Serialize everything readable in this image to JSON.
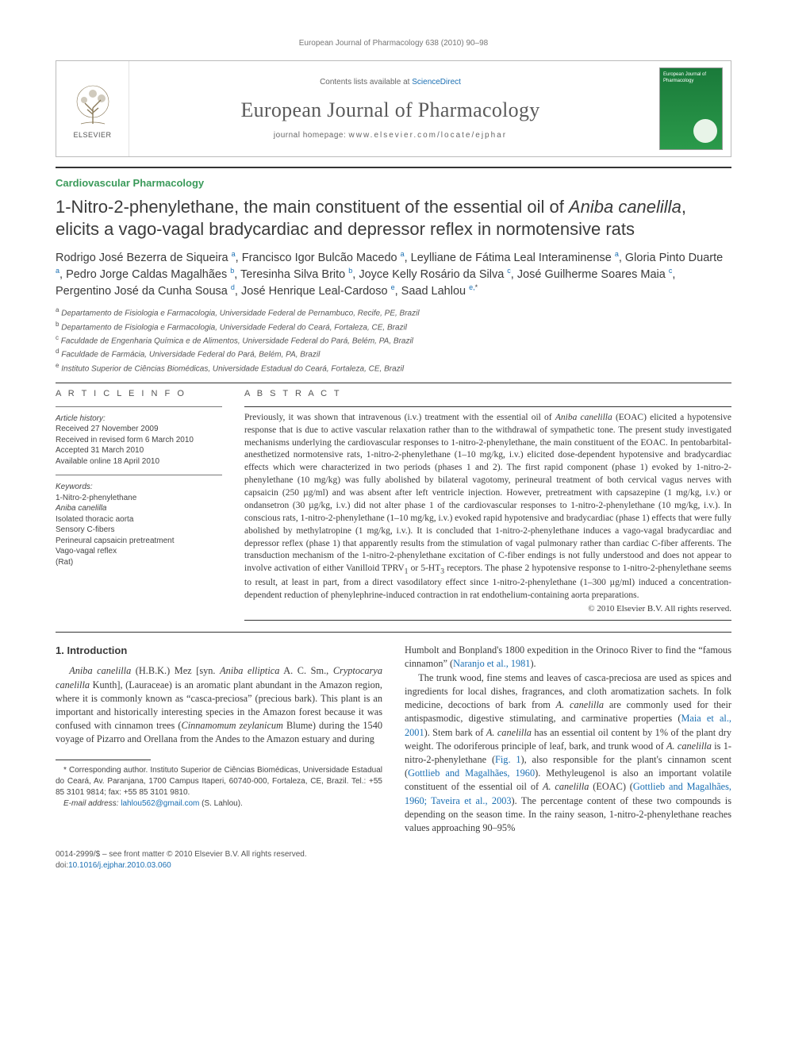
{
  "running_head": "European Journal of Pharmacology 638 (2010) 90–98",
  "masthead": {
    "contents_prefix": "Contents lists available at ",
    "contents_link": "ScienceDirect",
    "journal_name": "European Journal of Pharmacology",
    "homepage_label": "journal homepage: ",
    "homepage_url": "www.elsevier.com/locate/ejphar",
    "publisher_word": "ELSEVIER",
    "cover_text": "European Journal of Pharmacology"
  },
  "section_tag": "Cardiovascular Pharmacology",
  "title_html": "1-Nitro-2-phenylethane, the main constituent of the essential oil of <em>Aniba canelilla</em>, elicits a vago-vagal bradycardiac and depressor reflex in normotensive rats",
  "authors_html": "Rodrigo José Bezerra de Siqueira <sup>a</sup>, Francisco Igor Bulcão Macedo <sup>a</sup>, Leylliane de Fátima Leal Interaminense <sup>a</sup>, Gloria Pinto Duarte <sup>a</sup>, Pedro Jorge Caldas Magalhães <sup>b</sup>, Teresinha Silva Brito <sup>b</sup>, Joyce Kelly Rosário da Silva <sup>c</sup>, José Guilherme Soares Maia <sup>c</sup>, Pergentino José da Cunha Sousa <sup>d</sup>, José Henrique Leal-Cardoso <sup>e</sup>, Saad Lahlou <sup>e,</sup><sup class=\"ast\">*</sup>",
  "affiliations": [
    {
      "key": "a",
      "text": "Departamento de Fisiologia e Farmacologia, Universidade Federal de Pernambuco, Recife, PE, Brazil"
    },
    {
      "key": "b",
      "text": "Departamento de Fisiologia e Farmacologia, Universidade Federal do Ceará, Fortaleza, CE, Brazil"
    },
    {
      "key": "c",
      "text": "Faculdade de Engenharia Química e de Alimentos, Universidade Federal do Pará, Belém, PA, Brazil"
    },
    {
      "key": "d",
      "text": "Faculdade de Farmácia, Universidade Federal do Pará, Belém, PA, Brazil"
    },
    {
      "key": "e",
      "text": "Instituto Superior de Ciências Biomédicas, Universidade Estadual do Ceará, Fortaleza, CE, Brazil"
    }
  ],
  "article_info": {
    "heading": "A R T I C L E   I N F O",
    "history_label": "Article history:",
    "history": [
      "Received 27 November 2009",
      "Received in revised form 6 March 2010",
      "Accepted 31 March 2010",
      "Available online 18 April 2010"
    ],
    "keywords_label": "Keywords:",
    "keywords": [
      "1-Nitro-2-phenylethane",
      "Aniba canelilla",
      "Isolated thoracic aorta",
      "Sensory C-fibers",
      "Perineural capsaicin pretreatment",
      "Vago-vagal reflex",
      "(Rat)"
    ]
  },
  "abstract": {
    "heading": "A B S T R A C T",
    "text_html": "Previously, it was shown that intravenous (i.v.) treatment with the essential oil of <em>Aniba canelilla</em> (EOAC) elicited a hypotensive response that is due to active vascular relaxation rather than to the withdrawal of sympathetic tone. The present study investigated mechanisms underlying the cardiovascular responses to 1-nitro-2-phenylethane, the main constituent of the EOAC. In pentobarbital-anesthetized normotensive rats, 1-nitro-2-phenylethane (1–10 mg/kg, i.v.) elicited dose-dependent hypotensive and bradycardiac effects which were characterized in two periods (phases 1 and 2). The first rapid component (phase 1) evoked by 1-nitro-2-phenylethane (10 mg/kg) was fully abolished by bilateral vagotomy, perineural treatment of both cervical vagus nerves with capsaicin (250 µg/ml) and was absent after left ventricle injection. However, pretreatment with capsazepine (1 mg/kg, i.v.) or ondansetron (30 µg/kg, i.v.) did not alter phase 1 of the cardiovascular responses to 1-nitro-2-phenylethane (10 mg/kg, i.v.). In conscious rats, 1-nitro-2-phenylethane (1–10 mg/kg, i.v.) evoked rapid hypotensive and bradycardiac (phase 1) effects that were fully abolished by methylatropine (1 mg/kg, i.v.). It is concluded that 1-nitro-2-phenylethane induces a vago-vagal bradycardiac and depressor reflex (phase 1) that apparently results from the stimulation of vagal pulmonary rather than cardiac C-fiber afferents. The transduction mechanism of the 1-nitro-2-phenylethane excitation of C-fiber endings is not fully understood and does not appear to involve activation of either Vanilloid TPRV<sub>1</sub> or 5-HT<sub>3</sub> receptors. The phase 2 hypotensive response to 1-nitro-2-phenylethane seems to result, at least in part, from a direct vasodilatory effect since 1-nitro-2-phenylethane (1–300 µg/ml) induced a concentration-dependent reduction of phenylephrine-induced contraction in rat endothelium-containing aorta preparations.",
    "copyright": "© 2010 Elsevier B.V. All rights reserved."
  },
  "body": {
    "intro_heading": "1. Introduction",
    "para1_html": "<em>Aniba canelilla</em> (H.B.K.) Mez [syn. <em>Aniba elliptica</em> A. C. Sm., <em>Cryptocarya canelilla</em> Kunth], (Lauraceae) is an aromatic plant abundant in the Amazon region, where it is commonly known as “casca-preciosa” (precious bark). This plant is an important and historically interesting species in the Amazon forest because it was confused with cinnamon trees (<em>Cinnamomum zeylanicum</em> Blume) during the 1540 voyage of Pizarro and Orellana from the Andes to the Amazon estuary and during",
    "para2_html": "Humbolt and Bonpland's 1800 expedition in the Orinoco River to find the “famous cinnamon” (<a>Naranjo et al., 1981</a>).",
    "para3_html": "The trunk wood, fine stems and leaves of casca-preciosa are used as spices and ingredients for local dishes, fragrances, and cloth aromatization sachets. In folk medicine, decoctions of bark from <em>A. canelilla</em> are commonly used for their antispasmodic, digestive stimulating, and carminative properties (<a>Maia et al., 2001</a>). Stem bark of <em>A. canelilla</em> has an essential oil content by 1% of the plant dry weight. The odoriferous principle of leaf, bark, and trunk wood of <em>A. canelilla</em> is 1-nitro-2-phenylethane (<a>Fig. 1</a>), also responsible for the plant's cinnamon scent (<a>Gottlieb and Magalhães, 1960</a>). Methyleugenol is also an important volatile constituent of the essential oil of <em>A. canelilla</em> (EOAC) (<a>Gottlieb and Magalhães, 1960; Taveira et al., 2003</a>). The percentage content of these two compounds is depending on the season time. In the rainy season, 1-nitro-2-phenylethane reaches values approaching 90–95%"
  },
  "footnote": {
    "corr_html": "* Corresponding author. Instituto Superior de Ciências Biomédicas, Universidade Estadual do Ceará, Av. Paranjana, 1700 Campus Itaperi, 60740-000, Fortaleza, CE, Brazil. Tel.: +55 85 3101 9814; fax: +55 85 3101 9810.",
    "email_label": "E-mail address: ",
    "email": "lahlou562@gmail.com",
    "email_suffix": " (S. Lahlou)."
  },
  "bottom": {
    "issn_line": "0014-2999/$ – see front matter © 2010 Elsevier B.V. All rights reserved.",
    "doi_label": "doi:",
    "doi": "10.1016/j.ejphar.2010.03.060"
  },
  "colors": {
    "link": "#1a6fb3",
    "section_tag": "#3a9a5a",
    "text": "#3a3a3a",
    "rule": "#333333"
  },
  "typography": {
    "body_pt": 12.3,
    "title_pt": 22,
    "authors_pt": 14.5,
    "small_pt": 10,
    "journal_name_pt": 26
  }
}
